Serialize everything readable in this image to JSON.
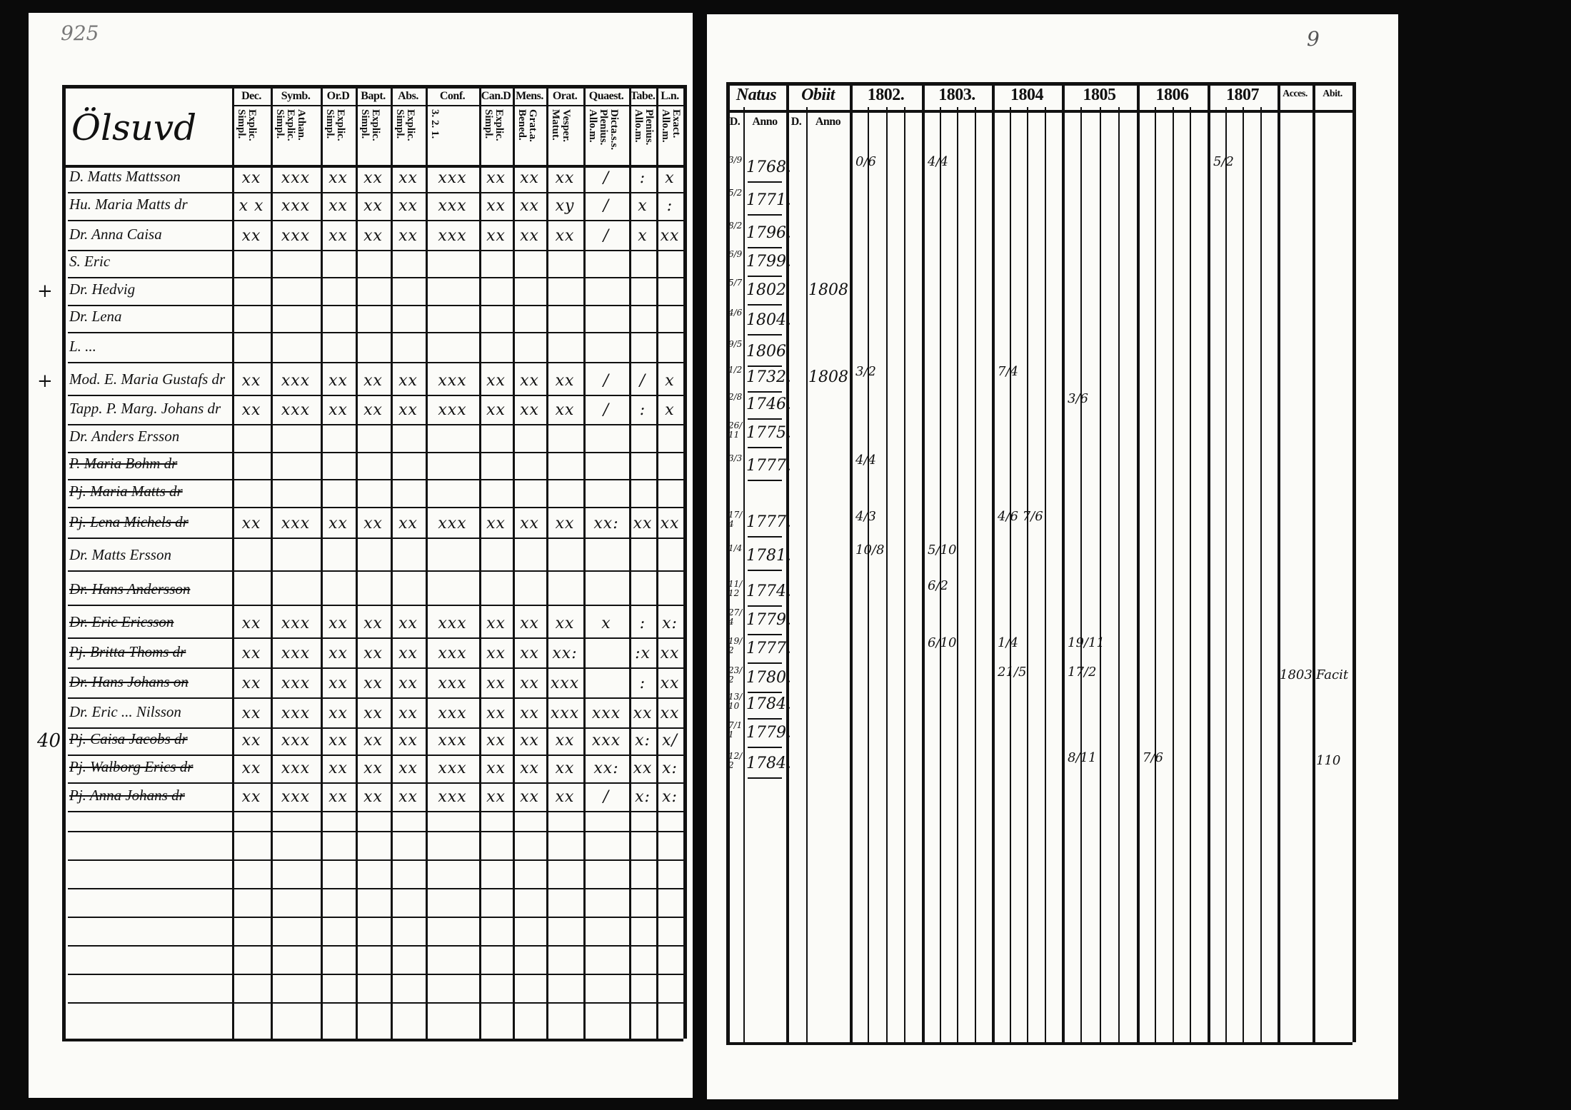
{
  "left_page": {
    "page_number": "925",
    "title": "Ölsuvd",
    "columns": [
      {
        "head": "Dec.",
        "sub": "Explic. Simpl."
      },
      {
        "head": "Symb.",
        "sub": "Athan. Explic. Simpl."
      },
      {
        "head": "Or.D",
        "sub": "Explic. Simpl."
      },
      {
        "head": "Bapt.",
        "sub": "Explic. Simpl."
      },
      {
        "head": "Abs.",
        "sub": "Explic. Simpl."
      },
      {
        "head": "Conf.",
        "sub": "3. 2. 1."
      },
      {
        "head": "Can.D",
        "sub": "Explic. Simpl."
      },
      {
        "head": "Mens.",
        "sub": "Grat.a. Bened."
      },
      {
        "head": "Orat.",
        "sub": "Vesper. Matut."
      },
      {
        "head": "Quaest.",
        "sub": "Dicta.s.s. Plenius. Allo.m."
      },
      {
        "head": "Tabe.",
        "sub": "Plenius. Allo.m."
      },
      {
        "head": "L.n.",
        "sub": "Exact. Allo.m."
      }
    ],
    "rows": [
      {
        "margin": "",
        "name": "D. Matts Mattsson",
        "struck": false,
        "marks": [
          "xx",
          "xxx",
          "xx",
          "xx",
          "xx",
          "xxx",
          "xx",
          "xx",
          "xx",
          "/",
          ":",
          "x"
        ]
      },
      {
        "margin": "",
        "name": "Hu. Maria Matts dr",
        "struck": false,
        "marks": [
          "x x",
          "xxx",
          "xx",
          "xx",
          "xx",
          "xxx",
          "xx",
          "xx",
          "xy",
          "/",
          "x",
          ":"
        ]
      },
      {
        "margin": "",
        "name": "Dr. Anna Caisa",
        "struck": false,
        "marks": [
          "xx",
          "xxx",
          "xx",
          "xx",
          "xx",
          "xxx",
          "xx",
          "xx",
          "xx",
          "/",
          "x",
          "xx"
        ]
      },
      {
        "margin": "",
        "name": "S. Eric",
        "struck": false,
        "marks": [
          "",
          "",
          "",
          "",
          "",
          "",
          "",
          "",
          "",
          "",
          "",
          ""
        ]
      },
      {
        "margin": "+",
        "name": "Dr. Hedvig",
        "struck": false,
        "marks": [
          "",
          "",
          "",
          "",
          "",
          "",
          "",
          "",
          "",
          "",
          "",
          ""
        ]
      },
      {
        "margin": "",
        "name": "Dr. Lena",
        "struck": false,
        "marks": [
          "",
          "",
          "",
          "",
          "",
          "",
          "",
          "",
          "",
          "",
          "",
          ""
        ]
      },
      {
        "margin": "",
        "name": "L. ...",
        "struck": false,
        "marks": [
          "",
          "",
          "",
          "",
          "",
          "",
          "",
          "",
          "",
          "",
          "",
          ""
        ]
      },
      {
        "margin": "+",
        "name": "Mod. E. Maria Gustafs dr",
        "struck": false,
        "marks": [
          "xx",
          "xxx",
          "xx",
          "xx",
          "xx",
          "xxx",
          "xx",
          "xx",
          "xx",
          "/",
          "/",
          "x"
        ]
      },
      {
        "margin": "",
        "name": "Tapp. P. Marg. Johans dr",
        "struck": false,
        "marks": [
          "xx",
          "xxx",
          "xx",
          "xx",
          "xx",
          "xxx",
          "xx",
          "xx",
          "xx",
          "/",
          ":",
          "x"
        ]
      },
      {
        "margin": "",
        "name": "Dr. Anders Ersson",
        "struck": false,
        "marks": [
          "",
          "",
          "",
          "",
          "",
          "",
          "",
          "",
          "",
          "",
          "",
          ""
        ]
      },
      {
        "margin": "",
        "name": "P. Maria Bohm dr",
        "struck": true,
        "marks": [
          "",
          "",
          "",
          "",
          "",
          "",
          "",
          "",
          "",
          "",
          "",
          ""
        ]
      },
      {
        "margin": "",
        "name": "Pj. Maria Matts dr",
        "struck": true,
        "marks": [
          "",
          "",
          "",
          "",
          "",
          "",
          "",
          "",
          "",
          "",
          "",
          ""
        ]
      },
      {
        "margin": "",
        "name": "Pj. Lena Michels dr",
        "struck": true,
        "marks": [
          "xx",
          "xxx",
          "xx",
          "xx",
          "xx",
          "xxx",
          "xx",
          "xx",
          "xx",
          "xx:",
          "xx",
          "xx"
        ]
      },
      {
        "margin": "",
        "name": "Dr. Matts Ersson",
        "struck": false,
        "marks": [
          "",
          "",
          "",
          "",
          "",
          "",
          "",
          "",
          "",
          "",
          "",
          ""
        ]
      },
      {
        "margin": "",
        "name": "Dr. Hans Andersson",
        "struck": true,
        "marks": [
          "",
          "",
          "",
          "",
          "",
          "",
          "",
          "",
          "",
          "",
          "",
          ""
        ]
      },
      {
        "margin": "",
        "name": "Dr. Eric Ericsson",
        "struck": true,
        "marks": [
          "xx",
          "xxx",
          "xx",
          "xx",
          "xx",
          "xxx",
          "xx",
          "xx",
          "xx",
          "x",
          ":",
          "x:"
        ]
      },
      {
        "margin": "",
        "name": "Pj. Britta Thoms dr",
        "struck": true,
        "marks": [
          "xx",
          "xxx",
          "xx",
          "xx",
          "xx",
          "xxx",
          "xx",
          "xx",
          "xx:",
          "",
          ":x",
          "xx"
        ]
      },
      {
        "margin": "",
        "name": "Dr. Hans Johans on",
        "struck": true,
        "marks": [
          "xx",
          "xxx",
          "xx",
          "xx",
          "xx",
          "xxx",
          "xx",
          "xx",
          "xxx",
          "",
          ":",
          "xx"
        ]
      },
      {
        "margin": "",
        "name": "Dr. Eric ... Nilsson",
        "struck": false,
        "marks": [
          "xx",
          "xxx",
          "xx",
          "xx",
          "xx",
          "xxx",
          "xx",
          "xx",
          "xxx",
          "xxx",
          "xx",
          "xx"
        ]
      },
      {
        "margin": "40",
        "name": "Pj. Caisa Jacobs dr",
        "struck": true,
        "marks": [
          "xx",
          "xxx",
          "xx",
          "xx",
          "xx",
          "xxx",
          "xx",
          "xx",
          "xx",
          "xxx",
          "x:",
          "x/"
        ]
      },
      {
        "margin": "",
        "name": "Pj. Walborg Erics dr",
        "struck": true,
        "marks": [
          "xx",
          "xxx",
          "xx",
          "xx",
          "xx",
          "xxx",
          "xx",
          "xx",
          "xx",
          "xx:",
          "xx",
          "x:"
        ]
      },
      {
        "margin": "",
        "name": "Pj. Anna Johans dr",
        "struck": true,
        "marks": [
          "xx",
          "xxx",
          "xx",
          "xx",
          "xx",
          "xxx",
          "xx",
          "xx",
          "xx",
          "/",
          "x:",
          "x:"
        ]
      }
    ]
  },
  "right_page": {
    "page_number": "9",
    "natus": {
      "head": "Natus",
      "d": "D.",
      "anno": "Anno"
    },
    "obiit": {
      "head": "Obiit",
      "d": "D.",
      "anno": "Anno"
    },
    "years": [
      "1802.",
      "1803.",
      "1804",
      "1805",
      "1806",
      "1807"
    ],
    "acces": "Acces.",
    "abit": "Abit.",
    "rows": [
      {
        "d": "3/9",
        "anno": "1768.",
        "obiit": "",
        "acces": "",
        "abit": ""
      },
      {
        "d": "5/2",
        "anno": "1771.",
        "obiit": "",
        "acces": "",
        "abit": ""
      },
      {
        "d": "8/2",
        "anno": "1796.",
        "obiit": "",
        "acces": "",
        "abit": ""
      },
      {
        "d": "6/9",
        "anno": "1799.",
        "obiit": "",
        "acces": "",
        "abit": ""
      },
      {
        "d": "5/7",
        "anno": "1802",
        "obiit": "1808",
        "acces": "",
        "abit": ""
      },
      {
        "d": "4/6",
        "anno": "1804.",
        "obiit": "",
        "acces": "",
        "abit": ""
      },
      {
        "d": "9/5",
        "anno": "1806",
        "obiit": "",
        "acces": "",
        "abit": ""
      },
      {
        "d": "1/2",
        "anno": "1732.",
        "obiit": "1808",
        "acces": "",
        "abit": ""
      },
      {
        "d": "2/8",
        "anno": "1746.",
        "obiit": "",
        "acces": "",
        "abit": ""
      },
      {
        "d": "26/11",
        "anno": "1775.",
        "obiit": "",
        "acces": "",
        "abit": ""
      },
      {
        "d": "3/3",
        "anno": "1777.",
        "obiit": "",
        "acces": "",
        "abit": ""
      },
      {
        "d": "17/4",
        "anno": "1777.",
        "obiit": "",
        "acces": "",
        "abit": ""
      },
      {
        "d": "1/4",
        "anno": "1781.",
        "obiit": "",
        "acces": "",
        "abit": ""
      },
      {
        "d": "11/12",
        "anno": "1774.",
        "obiit": "",
        "acces": "",
        "abit": ""
      },
      {
        "d": "27/4",
        "anno": "1779.",
        "obiit": "",
        "acces": "",
        "abit": ""
      },
      {
        "d": "19/2",
        "anno": "1777.",
        "obiit": "",
        "acces": "",
        "abit": ""
      },
      {
        "d": "23/2",
        "anno": "1780.",
        "obiit": "",
        "acces": "1803",
        "abit": "Facit"
      },
      {
        "d": "13/10",
        "anno": "1784.",
        "obiit": "",
        "acces": "",
        "abit": ""
      },
      {
        "d": "7/11",
        "anno": "1779.",
        "obiit": "",
        "acces": "",
        "abit": ""
      },
      {
        "d": "12/2",
        "anno": "1784.",
        "obiit": "",
        "acces": "",
        "abit": "110"
      }
    ],
    "year_notes": [
      {
        "year": "1802.",
        "row": 0,
        "text": "0/6"
      },
      {
        "year": "1803.",
        "row": 0,
        "text": "4/4"
      },
      {
        "year": "1807",
        "row": 0,
        "text": "5/2"
      },
      {
        "year": "1802.",
        "row": 7,
        "text": "3/2"
      },
      {
        "year": "1804",
        "row": 7,
        "text": "7/4"
      },
      {
        "year": "1805",
        "row": 8,
        "text": "3/6"
      },
      {
        "year": "1802.",
        "row": 10,
        "text": "4/4"
      },
      {
        "year": "1802.",
        "row": 11,
        "text": "4/3"
      },
      {
        "year": "1804",
        "row": 11,
        "text": "4/6 7/6"
      },
      {
        "year": "1802.",
        "row": 12,
        "text": "10/8"
      },
      {
        "year": "1803.",
        "row": 12,
        "text": "5/10"
      },
      {
        "year": "1803.",
        "row": 13,
        "text": "6/2"
      },
      {
        "year": "1803.",
        "row": 15,
        "text": "6/10"
      },
      {
        "year": "1804",
        "row": 15,
        "text": "1/4"
      },
      {
        "year": "1805",
        "row": 15,
        "text": "19/11"
      },
      {
        "year": "1804",
        "row": 16,
        "text": "21/5"
      },
      {
        "year": "1805",
        "row": 16,
        "text": "17/2"
      },
      {
        "year": "1806",
        "row": 19,
        "text": "7/6"
      },
      {
        "year": "1805",
        "row": 19,
        "text": "8/11"
      }
    ]
  },
  "colors": {
    "paper": "#fbfbf8",
    "ink": "#111111",
    "background": "#0a0a0a"
  }
}
